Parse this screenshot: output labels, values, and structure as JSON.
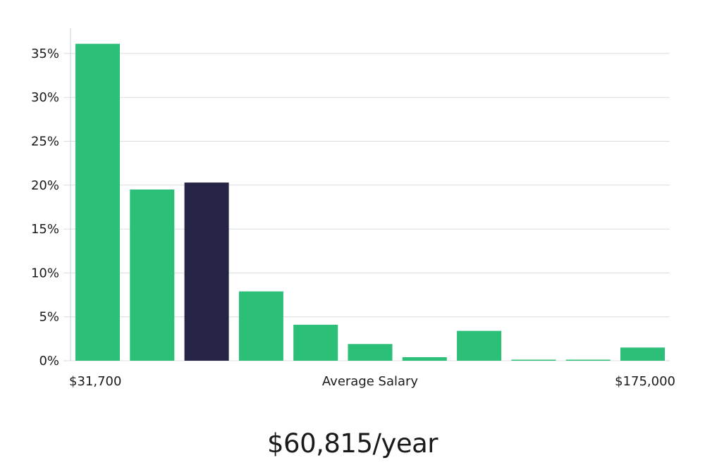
{
  "chart_data": {
    "type": "bar",
    "categories": [
      "1",
      "2",
      "3",
      "4",
      "5",
      "6",
      "7",
      "8",
      "9",
      "10",
      "11"
    ],
    "values": [
      36.1,
      19.5,
      20.3,
      7.9,
      4.1,
      1.9,
      0.4,
      3.4,
      0.05,
      0.05,
      1.5
    ],
    "highlight_index": 2,
    "y_ticks": [
      "0%",
      "5%",
      "10%",
      "15%",
      "20%",
      "25%",
      "30%",
      "35%"
    ],
    "ylim": [
      0,
      37
    ],
    "grid": true,
    "x_axis": {
      "left_label": "$31,700",
      "center_label": "Average Salary",
      "right_label": "$175,000"
    },
    "colors": {
      "bar": "#2bbf77",
      "highlight": "#262445",
      "grid": "#d9dce0",
      "axis": "#c8ccd2"
    }
  },
  "headline": "$60,815/year"
}
